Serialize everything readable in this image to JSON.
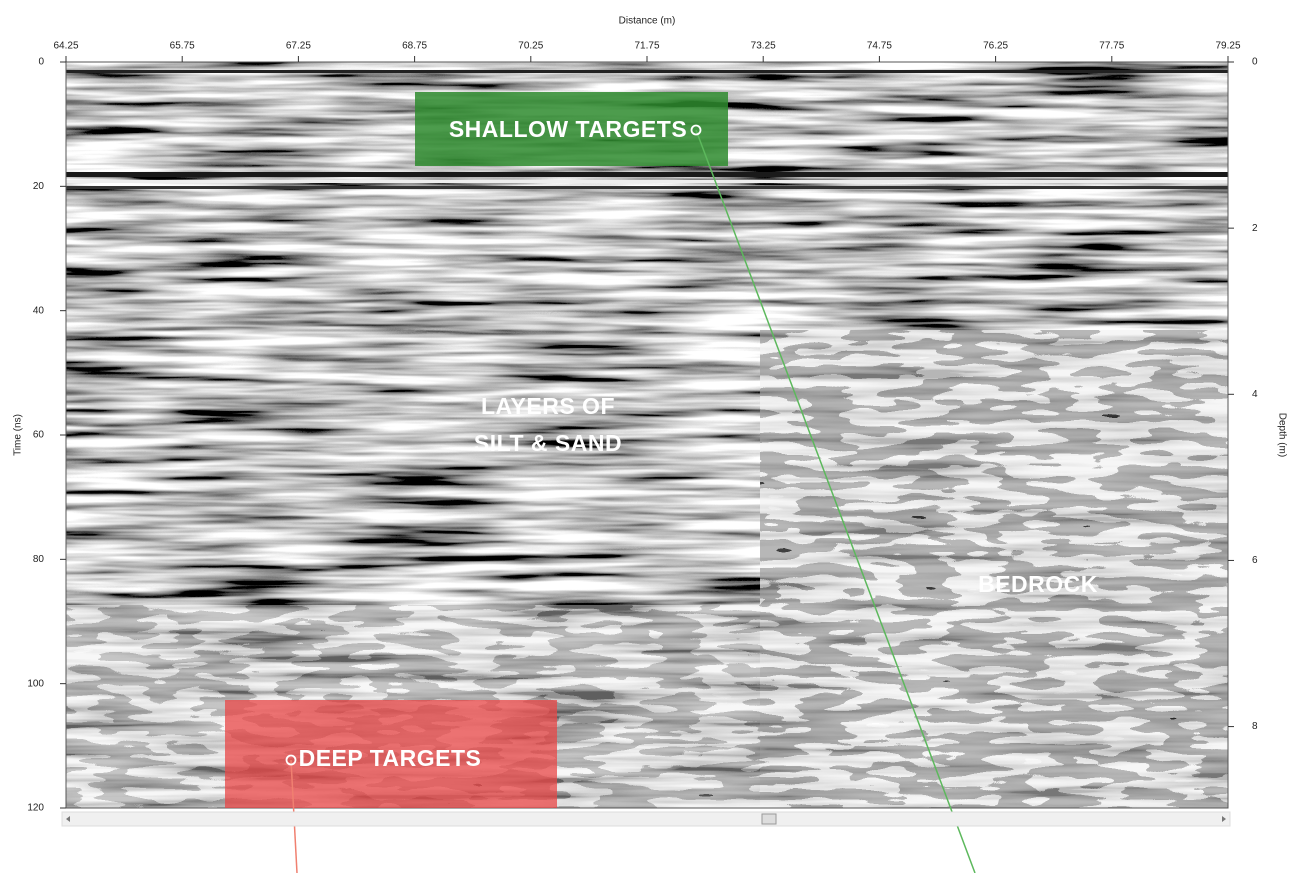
{
  "chart_data": {
    "type": "radargram",
    "xlabel": "Distance (m)",
    "ylabel": "Time (ns)",
    "y2label": "Depth (m)",
    "xlim": [
      64.25,
      79.25
    ],
    "xticks": [
      64.25,
      65.75,
      67.25,
      68.75,
      70.25,
      71.75,
      73.25,
      74.75,
      76.25,
      77.75,
      79.25
    ],
    "ylim": [
      0,
      120
    ],
    "yticks": [
      0,
      20,
      40,
      60,
      80,
      100,
      120
    ],
    "y2lim": [
      0,
      8.98
    ],
    "y2ticks": [
      0,
      2,
      4,
      6,
      8
    ],
    "annotations": {
      "shallow": "SHALLOW TARGETS",
      "layers": [
        "LAYERS OF",
        "SILT & SAND"
      ],
      "deep": "DEEP TARGETS",
      "bedrock": "BEDROCK"
    }
  }
}
